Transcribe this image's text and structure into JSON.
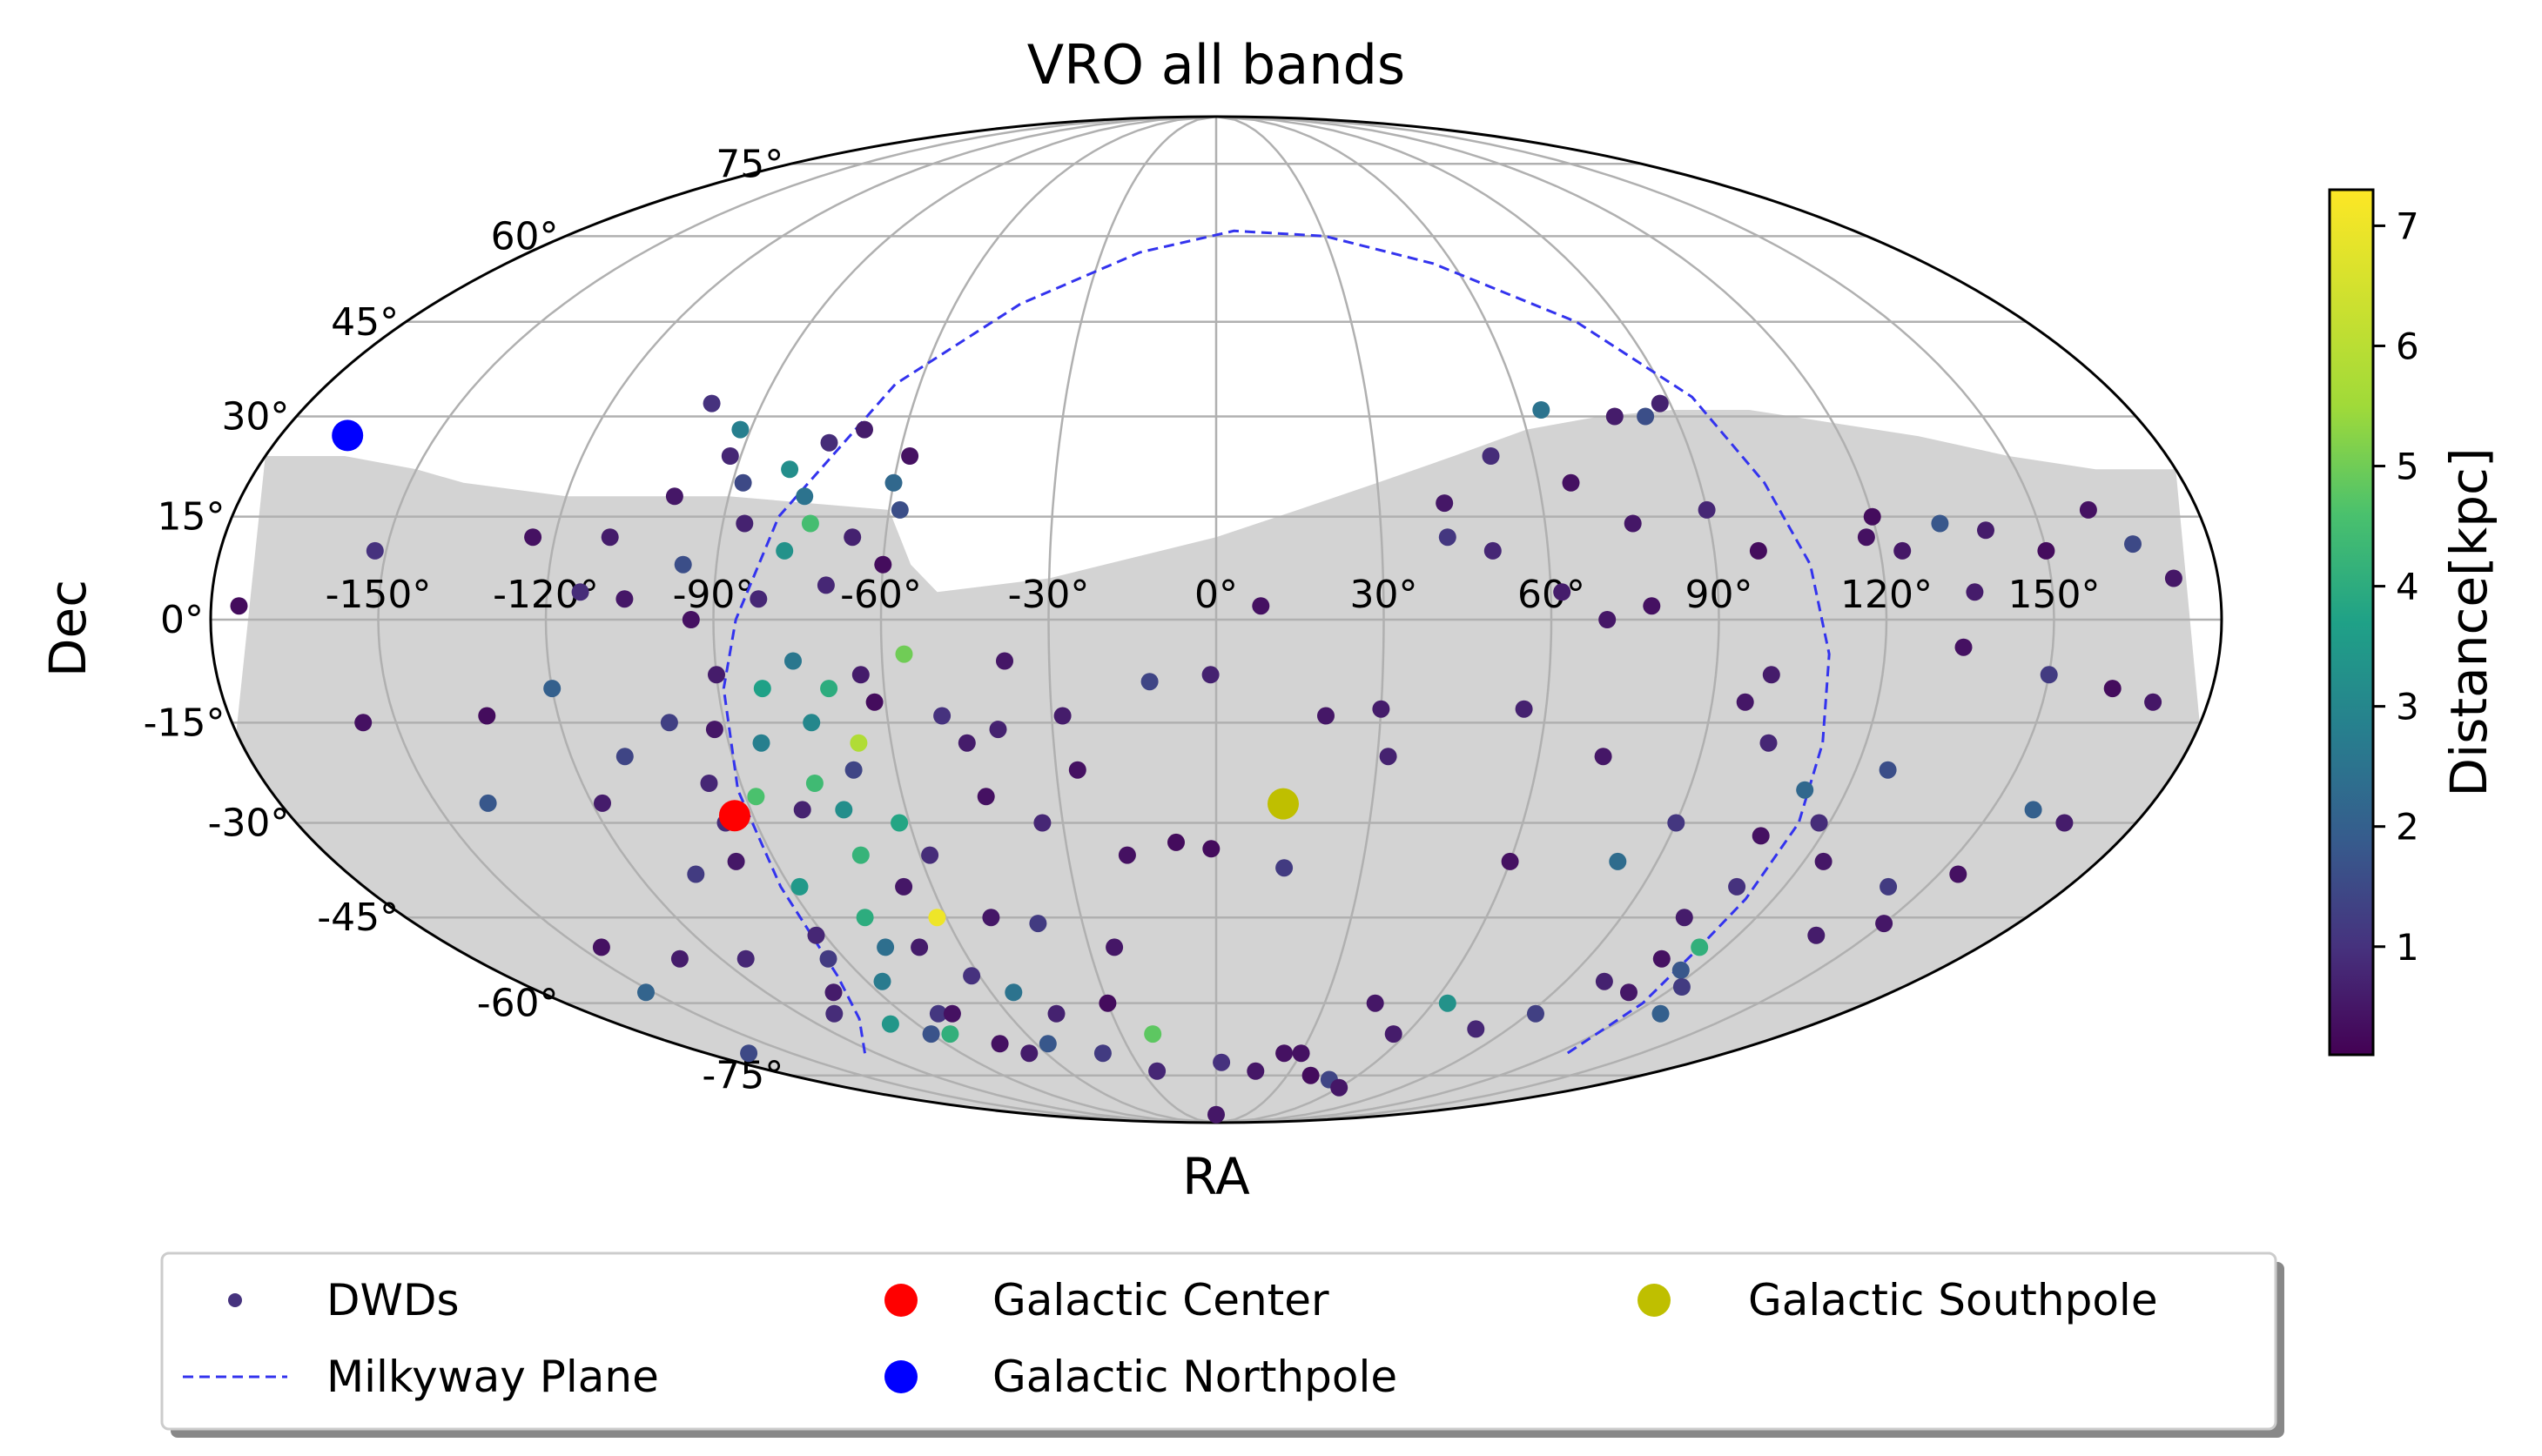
{
  "chart_data": {
    "type": "scatter",
    "projection": "mollweide",
    "title": "VRO all bands",
    "xlabel": "RA",
    "ylabel": "Dec",
    "ra_tick_labels": [
      "-150°",
      "-120°",
      "-90°",
      "-60°",
      "-30°",
      "0°",
      "30°",
      "60°",
      "90°",
      "120°",
      "150°"
    ],
    "ra_tick_values": [
      -150,
      -120,
      -90,
      -60,
      -30,
      0,
      30,
      60,
      90,
      120,
      150
    ],
    "dec_tick_labels": [
      "75°",
      "60°",
      "45°",
      "30°",
      "15°",
      "0°",
      "-15°",
      "-30°",
      "-45°",
      "-60°",
      "-75°"
    ],
    "dec_tick_values": [
      75,
      60,
      45,
      30,
      15,
      0,
      -15,
      -30,
      -45,
      -60,
      -75
    ],
    "grid": true,
    "colorbar": {
      "label": "Distance[kpc]",
      "ticks": [
        "1",
        "2",
        "3",
        "4",
        "5",
        "6",
        "7"
      ],
      "tick_values": [
        1,
        2,
        3,
        4,
        5,
        6,
        7
      ],
      "range": [
        0.1,
        7.3
      ],
      "colormap": "viridis"
    },
    "footprint": {
      "color": "#d3d3d3",
      "north_limit": [
        [
          -180,
          24
        ],
        [
          -165,
          24
        ],
        [
          -150,
          22
        ],
        [
          -140,
          20
        ],
        [
          -120,
          18
        ],
        [
          -90,
          18
        ],
        [
          -75,
          17
        ],
        [
          -60,
          16
        ],
        [
          -55,
          8
        ],
        [
          -50,
          4
        ],
        [
          -30,
          6
        ],
        [
          -15,
          9
        ],
        [
          0,
          12
        ],
        [
          15,
          16
        ],
        [
          30,
          20
        ],
        [
          45,
          24
        ],
        [
          60,
          28
        ],
        [
          75,
          30
        ],
        [
          90,
          31
        ],
        [
          105,
          31
        ],
        [
          120,
          29
        ],
        [
          135,
          27
        ],
        [
          150,
          24
        ],
        [
          165,
          22
        ],
        [
          180,
          22
        ]
      ],
      "south_limit": -90
    },
    "milkyway_plane": {
      "name": "Milkyway Plane",
      "color": "#3333ee",
      "points": [
        [
          -124,
          -70
        ],
        [
          -105,
          -63
        ],
        [
          -96,
          -55
        ],
        [
          -92,
          -40
        ],
        [
          -91,
          -25
        ],
        [
          -89,
          -10
        ],
        [
          -86,
          0
        ],
        [
          -80,
          15
        ],
        [
          -65,
          35
        ],
        [
          -45,
          48
        ],
        [
          -20,
          57
        ],
        [
          5,
          61
        ],
        [
          30,
          60
        ],
        [
          55,
          55
        ],
        [
          80,
          45
        ],
        [
          95,
          33
        ],
        [
          102,
          20
        ],
        [
          107,
          8
        ],
        [
          110,
          -5
        ],
        [
          112,
          -18
        ],
        [
          114,
          -30
        ],
        [
          114,
          -42
        ],
        [
          114,
          -50
        ],
        [
          118,
          -60
        ],
        [
          124,
          -70
        ]
      ]
    },
    "series": [
      {
        "name": "DWDs",
        "legend_color": "#46337e",
        "points": [
          [
            -175,
            2,
            0.3
          ],
          [
            -156,
            -15,
            0.4
          ],
          [
            -140,
            -27,
            1.8
          ],
          [
            -152,
            10,
            1.0
          ],
          [
            -133,
            -14,
            0.3
          ],
          [
            -118,
            -27,
            0.6
          ],
          [
            -108,
            -38,
            1.2
          ],
          [
            -114,
            -52,
            0.8
          ],
          [
            -130,
            -52,
            0.6
          ],
          [
            -145,
            -50,
            0.4
          ],
          [
            -152,
            -58,
            2.1
          ],
          [
            -165,
            -70,
            1.5
          ],
          [
            -120,
            -10,
            2.0
          ],
          [
            -110,
            -20,
            1.4
          ],
          [
            -96,
            -30,
            0.9
          ],
          [
            -88,
            -40,
            3.5
          ],
          [
            -78,
            -45,
            4.0
          ],
          [
            -70,
            -50,
            0.6
          ],
          [
            -62,
            -55,
            1.0
          ],
          [
            -54,
            -58,
            2.5
          ],
          [
            -46,
            -62,
            0.7
          ],
          [
            -40,
            -70,
            1.2
          ],
          [
            -30,
            -60,
            0.3
          ],
          [
            -20,
            -66,
            4.8
          ],
          [
            -24,
            -50,
            0.5
          ],
          [
            -18,
            -35,
            0.4
          ],
          [
            -34,
            -30,
            0.8
          ],
          [
            -46,
            -18,
            0.6
          ],
          [
            -62,
            -12,
            0.3
          ],
          [
            -76,
            -6,
            2.6
          ],
          [
            -82,
            3,
            0.8
          ],
          [
            -96,
            8,
            1.6
          ],
          [
            -106,
            3,
            0.5
          ],
          [
            -114,
            4,
            0.9
          ],
          [
            -124,
            12,
            0.4
          ],
          [
            -98,
            -36,
            0.5
          ],
          [
            -92,
            -48,
            0.8
          ],
          [
            -86,
            -56,
            2.7
          ],
          [
            -80,
            -62,
            1.1
          ],
          [
            -72,
            -68,
            0.4
          ],
          [
            -66,
            -70,
            0.6
          ],
          [
            -56,
            -68,
            1.8
          ],
          [
            -50,
            -45,
            0.5
          ],
          [
            -58,
            -35,
            0.9
          ],
          [
            -68,
            -22,
            1.4
          ],
          [
            -74,
            -15,
            3.0
          ],
          [
            -84,
            -18,
            2.8
          ],
          [
            -90,
            -8,
            0.6
          ],
          [
            -94,
            0,
            0.4
          ],
          [
            -100,
            -15,
            1.3
          ],
          [
            -80,
            -28,
            0.7
          ],
          [
            -72,
            -35,
            4.2
          ],
          [
            -66,
            -40,
            0.5
          ],
          [
            -62,
            -30,
            3.8
          ],
          [
            -70,
            5,
            0.8
          ],
          [
            -66,
            12,
            0.7
          ],
          [
            -60,
            20,
            2.2
          ],
          [
            -58,
            16,
            1.6
          ],
          [
            -74,
            14,
            4.5
          ],
          [
            -78,
            10,
            3.3
          ],
          [
            -64,
            -8,
            0.6
          ],
          [
            -56,
            -5,
            5.0
          ],
          [
            -50,
            -14,
            1.0
          ],
          [
            -96,
            -24,
            0.8
          ],
          [
            -92,
            -16,
            0.5
          ],
          [
            -88,
            -26,
            4.6
          ],
          [
            -94,
            -52,
            1.2
          ],
          [
            -102,
            -58,
            0.6
          ],
          [
            -110,
            -62,
            0.9
          ],
          [
            -98,
            -64,
            3.4
          ],
          [
            -90,
            -66,
            1.7
          ],
          [
            -84,
            -66,
            4.1
          ],
          [
            -76,
            -62,
            0.4
          ],
          [
            -62,
            -45,
            7.0
          ],
          [
            -78,
            -50,
            2.4
          ],
          [
            -82,
            -10,
            3.7
          ],
          [
            -70,
            -10,
            4.0
          ],
          [
            -76,
            -24,
            4.4
          ],
          [
            -72,
            -28,
            3.2
          ],
          [
            -66,
            -18,
            5.8
          ],
          [
            -60,
            8,
            0.3
          ],
          [
            -74,
            26,
            0.9
          ],
          [
            -68,
            28,
            0.6
          ],
          [
            -58,
            24,
            0.4
          ],
          [
            -86,
            14,
            0.7
          ],
          [
            -88,
            20,
            1.5
          ],
          [
            -92,
            24,
            0.8
          ],
          [
            -100,
            18,
            0.5
          ],
          [
            -110,
            12,
            0.6
          ],
          [
            -100,
            32,
            1.0
          ],
          [
            -92,
            28,
            2.8
          ],
          [
            -80,
            22,
            3.2
          ],
          [
            -76,
            18,
            2.5
          ],
          [
            -38,
            -6,
            0.5
          ],
          [
            -28,
            -14,
            0.6
          ],
          [
            -26,
            -22,
            0.4
          ],
          [
            -12,
            -9,
            1.4
          ],
          [
            -8,
            -33,
            0.3
          ],
          [
            -40,
            -46,
            1.2
          ],
          [
            -24,
            -74,
            0.8
          ],
          [
            2,
            -72,
            1.0
          ],
          [
            0,
            -86,
            0.5
          ],
          [
            -1,
            -34,
            0.3
          ],
          [
            -1,
            -8,
            0.7
          ],
          [
            8,
            2,
            0.4
          ],
          [
            20,
            -14,
            0.5
          ],
          [
            30,
            -13,
            0.6
          ],
          [
            32,
            -20,
            0.7
          ],
          [
            14,
            -37,
            1.2
          ],
          [
            24,
            -70,
            0.4
          ],
          [
            16,
            -74,
            0.5
          ],
          [
            42,
            12,
            1.1
          ],
          [
            50,
            10,
            0.8
          ],
          [
            62,
            4,
            0.6
          ],
          [
            70,
            0,
            0.5
          ],
          [
            78,
            2,
            0.4
          ],
          [
            76,
            14,
            0.5
          ],
          [
            90,
            16,
            0.8
          ],
          [
            98,
            10,
            0.3
          ],
          [
            56,
            -13,
            0.7
          ],
          [
            72,
            -20,
            0.5
          ],
          [
            90,
            -30,
            1.1
          ],
          [
            82,
            -36,
            2.3
          ],
          [
            60,
            -36,
            0.4
          ],
          [
            64,
            -60,
            3.3
          ],
          [
            56,
            -66,
            0.6
          ],
          [
            44,
            -60,
            0.5
          ],
          [
            30,
            -70,
            0.4
          ],
          [
            40,
            -75,
            0.3
          ],
          [
            50,
            -76,
            1.4
          ],
          [
            60,
            -78,
            0.5
          ],
          [
            80,
            -65,
            0.8
          ],
          [
            92,
            -62,
            1.3
          ],
          [
            100,
            -56,
            0.7
          ],
          [
            104,
            -45,
            0.6
          ],
          [
            110,
            -40,
            1.0
          ],
          [
            108,
            -32,
            0.4
          ],
          [
            114,
            -50,
            4.1
          ],
          [
            116,
            -54,
            1.8
          ],
          [
            122,
            -57,
            1.2
          ],
          [
            128,
            -62,
            2.0
          ],
          [
            110,
            -58,
            0.5
          ],
          [
            108,
            -52,
            0.4
          ],
          [
            102,
            -18,
            0.8
          ],
          [
            96,
            -12,
            0.5
          ],
          [
            100,
            -8,
            0.6
          ],
          [
            112,
            -25,
            2.2
          ],
          [
            118,
            -30,
            0.9
          ],
          [
            124,
            -36,
            0.5
          ],
          [
            126,
            -22,
            1.6
          ],
          [
            138,
            -48,
            0.6
          ],
          [
            142,
            -40,
            1.2
          ],
          [
            150,
            -46,
            0.5
          ],
          [
            154,
            -38,
            0.4
          ],
          [
            158,
            -28,
            2.0
          ],
          [
            166,
            -30,
            0.6
          ],
          [
            170,
            -12,
            0.5
          ],
          [
            162,
            -10,
            0.3
          ],
          [
            150,
            -8,
            1.2
          ],
          [
            136,
            4,
            0.6
          ],
          [
            124,
            10,
            0.5
          ],
          [
            118,
            12,
            0.4
          ],
          [
            132,
            14,
            1.8
          ],
          [
            160,
            16,
            0.4
          ],
          [
            150,
            10,
            0.3
          ],
          [
            172,
            6,
            0.5
          ],
          [
            166,
            11,
            1.5
          ],
          [
            134,
            -4,
            0.4
          ],
          [
            78,
            30,
            0.6
          ],
          [
            64,
            31,
            2.5
          ],
          [
            84,
            30,
            1.6
          ],
          [
            88,
            32,
            0.7
          ],
          [
            66,
            20,
            0.4
          ],
          [
            52,
            24,
            0.9
          ],
          [
            42,
            17,
            0.5
          ],
          [
            140,
            13,
            0.6
          ],
          [
            120,
            15,
            0.3
          ],
          [
            -40,
            -16,
            0.7
          ],
          [
            -44,
            -26,
            0.4
          ]
        ]
      },
      {
        "name": "Galactic Center",
        "color": "#ff0000",
        "points": [
          [
            -93.6,
            -28.9
          ]
        ]
      },
      {
        "name": "Galactic Northpole",
        "color": "#0000ff",
        "points": [
          [
            -167.1,
            27.1
          ]
        ]
      },
      {
        "name": "Galactic Southpole",
        "color": "#bfbf00",
        "points": [
          [
            12.9,
            -27.1
          ]
        ]
      }
    ],
    "legend_position": "bottom"
  }
}
